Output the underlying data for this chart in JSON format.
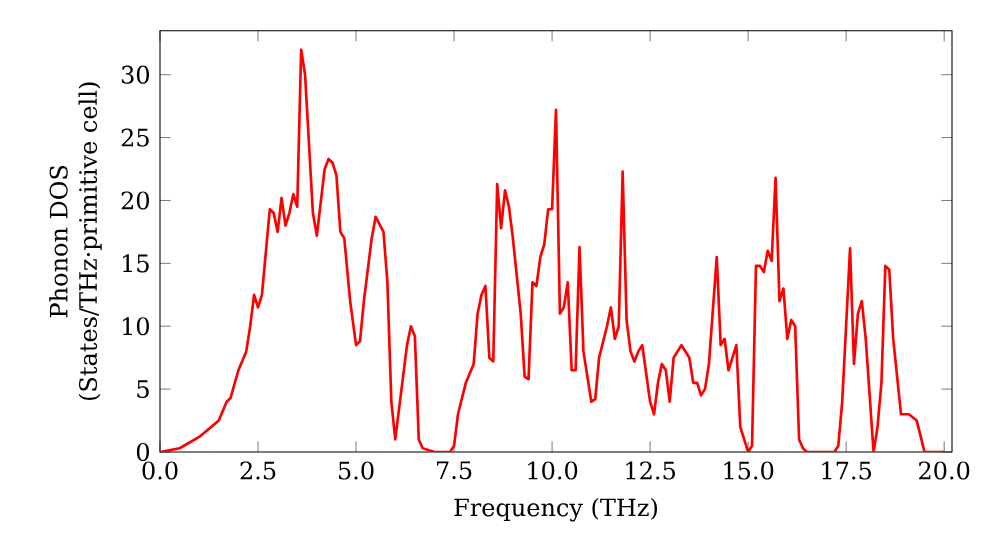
{
  "chart_data": {
    "type": "line",
    "xlabel": "Frequency (THz)",
    "ylabel": "Phonon DOS\n(States/THz·primitive cell)",
    "x": [
      0,
      0.5,
      1.0,
      1.5,
      1.7,
      1.8,
      2.0,
      2.2,
      2.3,
      2.4,
      2.5,
      2.6,
      2.8,
      2.9,
      3.0,
      3.1,
      3.2,
      3.3,
      3.4,
      3.5,
      3.6,
      3.7,
      3.9,
      4.0,
      4.2,
      4.3,
      4.4,
      4.5,
      4.6,
      4.7,
      4.85,
      5.0,
      5.1,
      5.2,
      5.4,
      5.5,
      5.7,
      5.8,
      5.9,
      6.0,
      6.2,
      6.3,
      6.4,
      6.5,
      6.6,
      6.7,
      7.0,
      7.4,
      7.5,
      7.6,
      7.8,
      8.0,
      8.1,
      8.2,
      8.3,
      8.4,
      8.5,
      8.6,
      8.7,
      8.8,
      8.9,
      9.0,
      9.2,
      9.3,
      9.4,
      9.5,
      9.6,
      9.7,
      9.8,
      9.9,
      10.0,
      10.1,
      10.2,
      10.3,
      10.4,
      10.5,
      10.6,
      10.7,
      10.8,
      10.9,
      11.0,
      11.1,
      11.2,
      11.4,
      11.5,
      11.6,
      11.7,
      11.8,
      11.9,
      12.0,
      12.1,
      12.2,
      12.3,
      12.5,
      12.6,
      12.7,
      12.8,
      12.9,
      13.0,
      13.1,
      13.3,
      13.5,
      13.6,
      13.7,
      13.8,
      13.9,
      14.0,
      14.2,
      14.3,
      14.4,
      14.5,
      14.6,
      14.7,
      14.8,
      15.0,
      15.1,
      15.2,
      15.3,
      15.4,
      15.5,
      15.6,
      15.7,
      15.8,
      15.9,
      16.0,
      16.1,
      16.2,
      16.3,
      16.4,
      16.5,
      17.2,
      17.3,
      17.4,
      17.6,
      17.7,
      17.8,
      17.9,
      18.0,
      18.2,
      18.3,
      18.4,
      18.5,
      18.6,
      18.7,
      18.9,
      19.1,
      19.3,
      19.5,
      20.0
    ],
    "series": [
      {
        "color": "#ff0000",
        "values": [
          0,
          0.3,
          1.2,
          2.5,
          4,
          4.3,
          6.5,
          8,
          10,
          12.5,
          11.5,
          12.5,
          19.3,
          19,
          17.5,
          20.2,
          18,
          19,
          20.5,
          19.5,
          32,
          30,
          19,
          17.2,
          22.5,
          23.3,
          23,
          22,
          17.5,
          17,
          12,
          8.5,
          8.8,
          12,
          17,
          18.7,
          17.5,
          13.5,
          4,
          1,
          6,
          8.5,
          10,
          9.2,
          1,
          0.3,
          0,
          0,
          0.5,
          3,
          5.5,
          7,
          11,
          12.5,
          13.2,
          7.5,
          7.2,
          21.3,
          17.8,
          20.8,
          19.5,
          17,
          11,
          6,
          5.8,
          13.5,
          13.2,
          15.5,
          16.5,
          19.3,
          19.3,
          27.2,
          11,
          11.5,
          13.5,
          6.5,
          6.5,
          16.3,
          8,
          6,
          4,
          4.2,
          7.5,
          10,
          11.5,
          9,
          10,
          22.3,
          10.5,
          8,
          7.2,
          8,
          8.5,
          4,
          3,
          5.5,
          7,
          6.5,
          4,
          7.5,
          8.5,
          7.5,
          5.5,
          5.5,
          4.5,
          5,
          7,
          15.5,
          8.5,
          9,
          6.5,
          7.5,
          8.5,
          2,
          0,
          0.5,
          14.8,
          14.8,
          14.3,
          16,
          15.2,
          21.8,
          12,
          13,
          9,
          10.5,
          10,
          1,
          0.3,
          0,
          0,
          0.5,
          4,
          16.2,
          7,
          11,
          12,
          9,
          0,
          2,
          5.5,
          14.8,
          14.5,
          9,
          3,
          3,
          2.5,
          0,
          0
        ]
      }
    ],
    "xlim": [
      0,
      20.2
    ],
    "ylim": [
      0,
      33.5
    ],
    "xticks": [
      {
        "value": 0,
        "label": "0.0"
      },
      2.5,
      {
        "value": 5,
        "label": "5.0"
      },
      7.5,
      {
        "value": 10,
        "label": "10.0"
      },
      12.5,
      {
        "value": 15,
        "label": "15.0"
      },
      17.5,
      {
        "value": 20,
        "label": "20.0"
      }
    ],
    "yticks": [
      0,
      5,
      10,
      15,
      20,
      25,
      30
    ],
    "grid": false,
    "marker": "none",
    "line_style": "solid"
  }
}
